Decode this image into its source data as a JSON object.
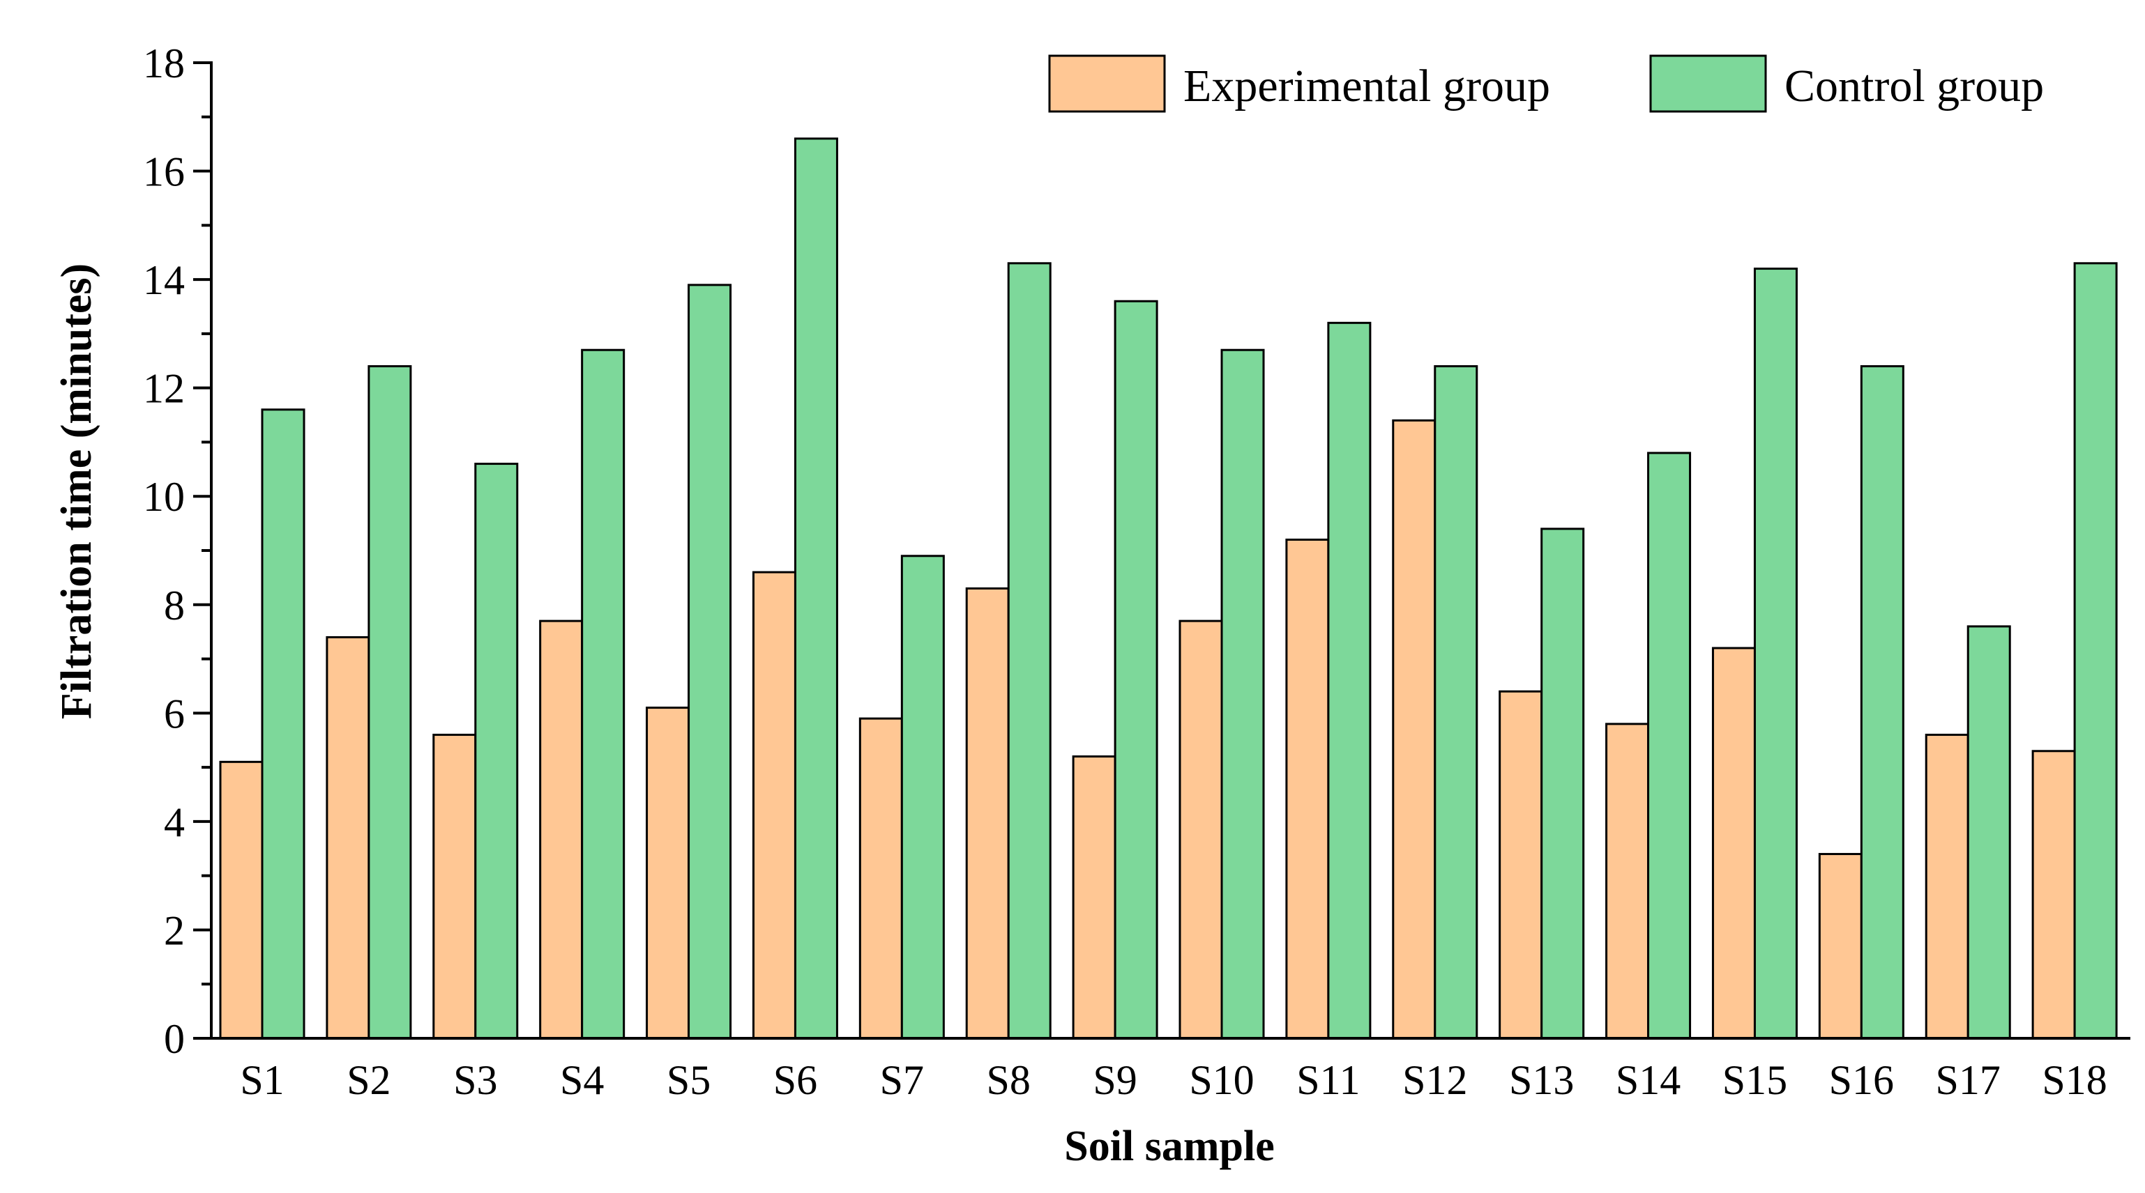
{
  "chart_data": {
    "type": "bar",
    "title": "",
    "xlabel": "Soil sample",
    "ylabel": "Filtration time (minutes)",
    "ylim": [
      0,
      18
    ],
    "yticks": [
      0,
      2,
      4,
      6,
      8,
      10,
      12,
      14,
      16,
      18
    ],
    "ytick_labels": [
      "0",
      "2",
      "4",
      "6",
      "8",
      "10",
      "12",
      "14",
      "16",
      "18"
    ],
    "grid": false,
    "legend_position": "top-right",
    "categories": [
      "S1",
      "S2",
      "S3",
      "S4",
      "S5",
      "S6",
      "S7",
      "S8",
      "S9",
      "S10",
      "S11",
      "S12",
      "S13",
      "S14",
      "S15",
      "S16",
      "S17",
      "S18"
    ],
    "series": [
      {
        "name": "Experimental group",
        "color": "#FFC794",
        "values": [
          5.1,
          7.4,
          5.6,
          7.7,
          6.1,
          8.6,
          5.9,
          8.3,
          5.2,
          7.7,
          9.2,
          11.4,
          6.4,
          5.8,
          7.2,
          3.4,
          5.6,
          5.3
        ]
      },
      {
        "name": "Control group",
        "color": "#7DD89A",
        "values": [
          11.6,
          12.4,
          10.6,
          12.7,
          13.9,
          16.6,
          8.9,
          14.3,
          13.6,
          12.7,
          13.2,
          12.4,
          9.4,
          10.8,
          14.2,
          12.4,
          7.6,
          14.3
        ]
      }
    ]
  }
}
